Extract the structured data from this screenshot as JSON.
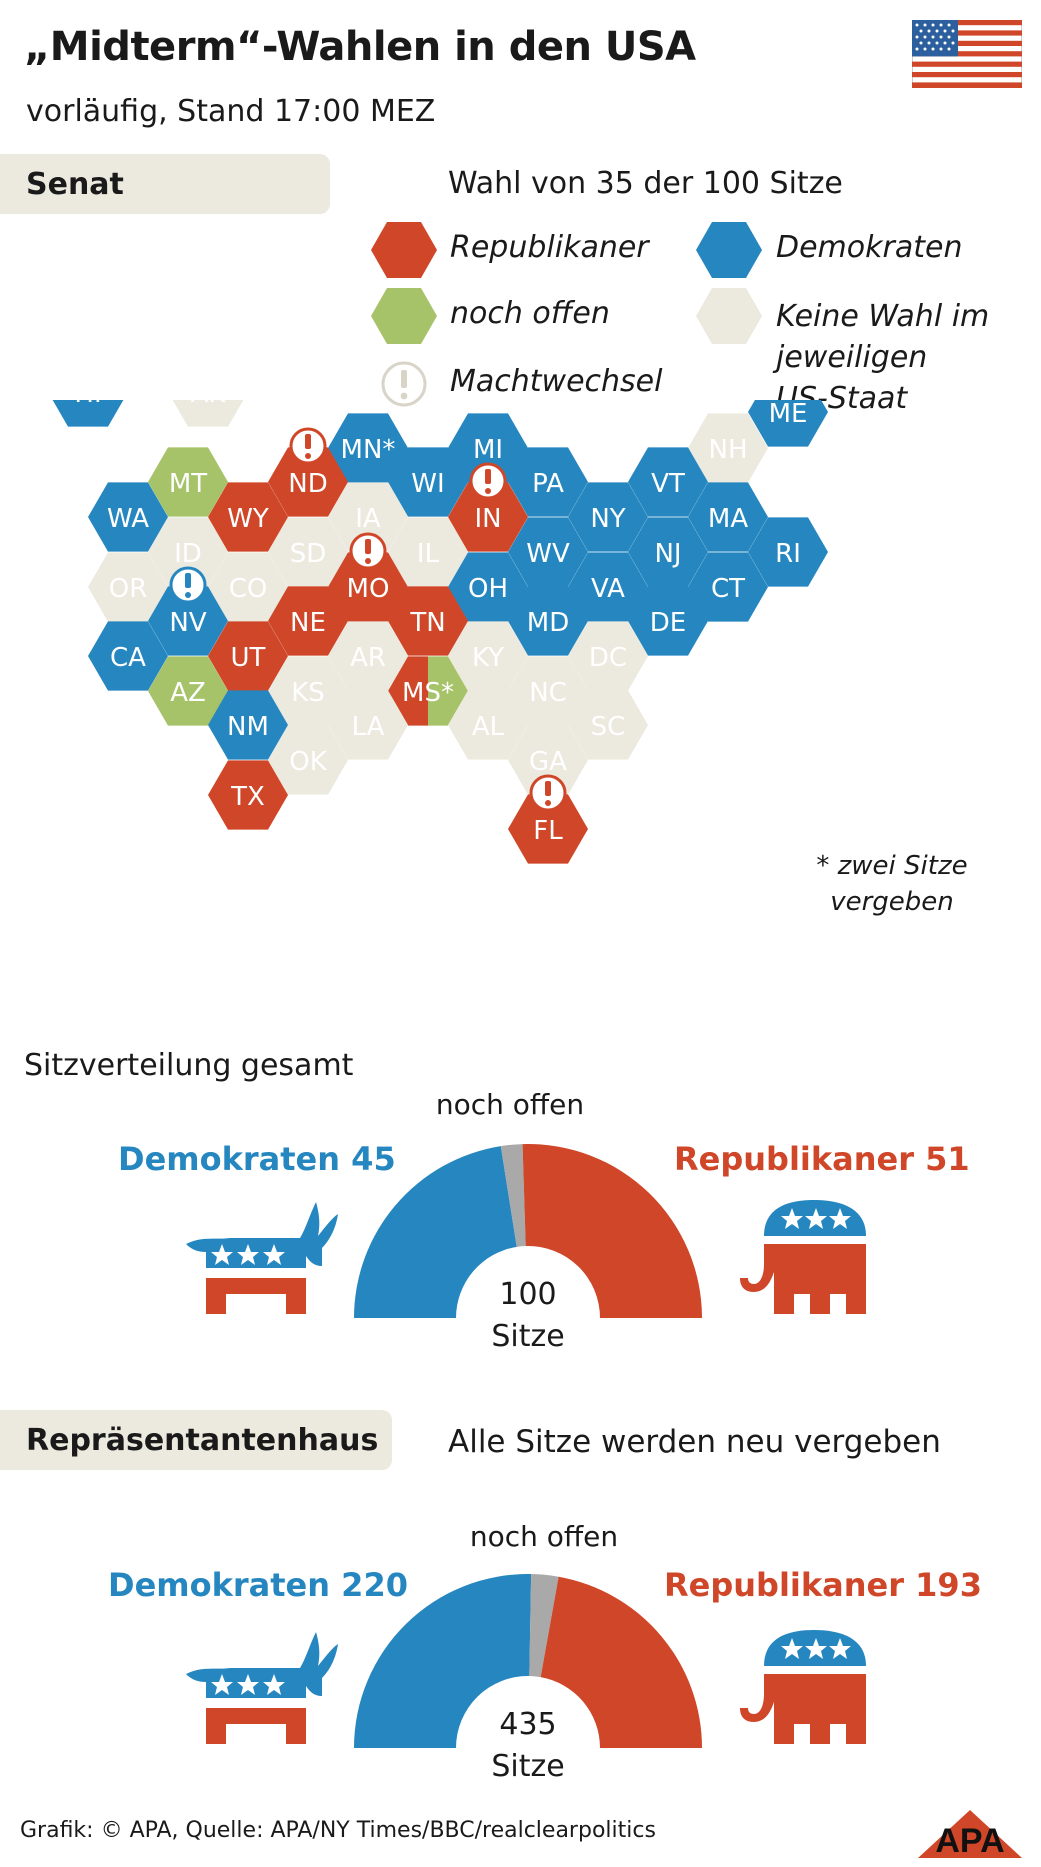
{
  "header": {
    "title": "„Midterm“-Wahlen in den USA",
    "subtitle": "vorläufig, Stand 17:00 MEZ"
  },
  "colors": {
    "republican": "#cf4628",
    "democrat": "#2687c0",
    "open": "#a6c36a",
    "no_election": "#ece9df",
    "open_seats_gray": "#a9a9a9"
  },
  "senate": {
    "tab_label": "Senat",
    "note": "Wahl von 35 der 100 Sitze",
    "legend": {
      "republican": "Republikaner",
      "democrat": "Demokraten",
      "open": "noch offen",
      "no_election_lines": [
        "Keine Wahl im",
        "jeweiligen",
        "US-Staat"
      ],
      "power_shift": "Machtwechsel"
    },
    "map": {
      "states": [
        {
          "abbr": "HI",
          "status": "dem"
        },
        {
          "abbr": "AK",
          "status": "none"
        },
        {
          "abbr": "ME",
          "status": "dem"
        },
        {
          "abbr": "MN*",
          "status": "dem"
        },
        {
          "abbr": "MI",
          "status": "dem"
        },
        {
          "abbr": "NH",
          "status": "none"
        },
        {
          "abbr": "ND",
          "status": "rep",
          "shift": true
        },
        {
          "abbr": "MT",
          "status": "open"
        },
        {
          "abbr": "WI",
          "status": "dem"
        },
        {
          "abbr": "PA",
          "status": "dem"
        },
        {
          "abbr": "VT",
          "status": "dem"
        },
        {
          "abbr": "WA",
          "status": "dem"
        },
        {
          "abbr": "WY",
          "status": "rep"
        },
        {
          "abbr": "IA",
          "status": "none"
        },
        {
          "abbr": "IN",
          "status": "rep",
          "shift": true
        },
        {
          "abbr": "NY",
          "status": "dem"
        },
        {
          "abbr": "MA",
          "status": "dem"
        },
        {
          "abbr": "ID",
          "status": "none"
        },
        {
          "abbr": "SD",
          "status": "none"
        },
        {
          "abbr": "IL",
          "status": "none"
        },
        {
          "abbr": "WV",
          "status": "dem"
        },
        {
          "abbr": "NJ",
          "status": "dem"
        },
        {
          "abbr": "RI",
          "status": "dem"
        },
        {
          "abbr": "OR",
          "status": "none"
        },
        {
          "abbr": "CO",
          "status": "none"
        },
        {
          "abbr": "MO",
          "status": "rep",
          "shift": true
        },
        {
          "abbr": "OH",
          "status": "dem"
        },
        {
          "abbr": "VA",
          "status": "dem"
        },
        {
          "abbr": "CT",
          "status": "dem"
        },
        {
          "abbr": "NV",
          "status": "dem",
          "shift": true
        },
        {
          "abbr": "NE",
          "status": "rep"
        },
        {
          "abbr": "TN",
          "status": "rep"
        },
        {
          "abbr": "MD",
          "status": "dem"
        },
        {
          "abbr": "DE",
          "status": "dem"
        },
        {
          "abbr": "CA",
          "status": "dem"
        },
        {
          "abbr": "UT",
          "status": "rep"
        },
        {
          "abbr": "AR",
          "status": "none"
        },
        {
          "abbr": "KY",
          "status": "none"
        },
        {
          "abbr": "DC",
          "status": "none"
        },
        {
          "abbr": "AZ",
          "status": "open"
        },
        {
          "abbr": "KS",
          "status": "none"
        },
        {
          "abbr": "MS*",
          "status": "split"
        },
        {
          "abbr": "NC",
          "status": "none"
        },
        {
          "abbr": "NM",
          "status": "dem"
        },
        {
          "abbr": "LA",
          "status": "none"
        },
        {
          "abbr": "AL",
          "status": "none"
        },
        {
          "abbr": "SC",
          "status": "none"
        },
        {
          "abbr": "OK",
          "status": "none"
        },
        {
          "abbr": "GA",
          "status": "none"
        },
        {
          "abbr": "TX",
          "status": "rep"
        },
        {
          "abbr": "FL",
          "status": "rep",
          "shift": true
        }
      ],
      "footnote_lines": [
        "* zwei Sitze",
        "vergeben"
      ]
    },
    "distribution": {
      "title": "Sitzverteilung gesamt",
      "open_label": "noch offen",
      "dem_label": "Demokraten 45",
      "rep_label": "Republikaner 51",
      "total_number": "100",
      "total_unit": "Sitze"
    }
  },
  "house": {
    "tab_label": "Repräsentantenhaus",
    "note": "Alle Sitze werden neu vergeben",
    "distribution": {
      "open_label": "noch offen",
      "dem_label": "Demokraten 220",
      "rep_label": "Republikaner 193",
      "total_number": "435",
      "total_unit": "Sitze"
    }
  },
  "chart_data": [
    {
      "type": "pie",
      "subtype": "semicircle",
      "title": "Sitzverteilung gesamt",
      "categories": [
        "Demokraten",
        "noch offen",
        "Republikaner"
      ],
      "values": [
        45,
        4,
        51
      ],
      "total": 100
    },
    {
      "type": "pie",
      "subtype": "semicircle",
      "title": "",
      "categories": [
        "Demokraten",
        "noch offen",
        "Republikaner"
      ],
      "values": [
        220,
        22,
        193
      ],
      "total": 435
    }
  ],
  "footer": {
    "credit": "Grafik: © APA, Quelle: APA/NY Times/BBC/realclearpolitics",
    "logo_text": "APA"
  }
}
